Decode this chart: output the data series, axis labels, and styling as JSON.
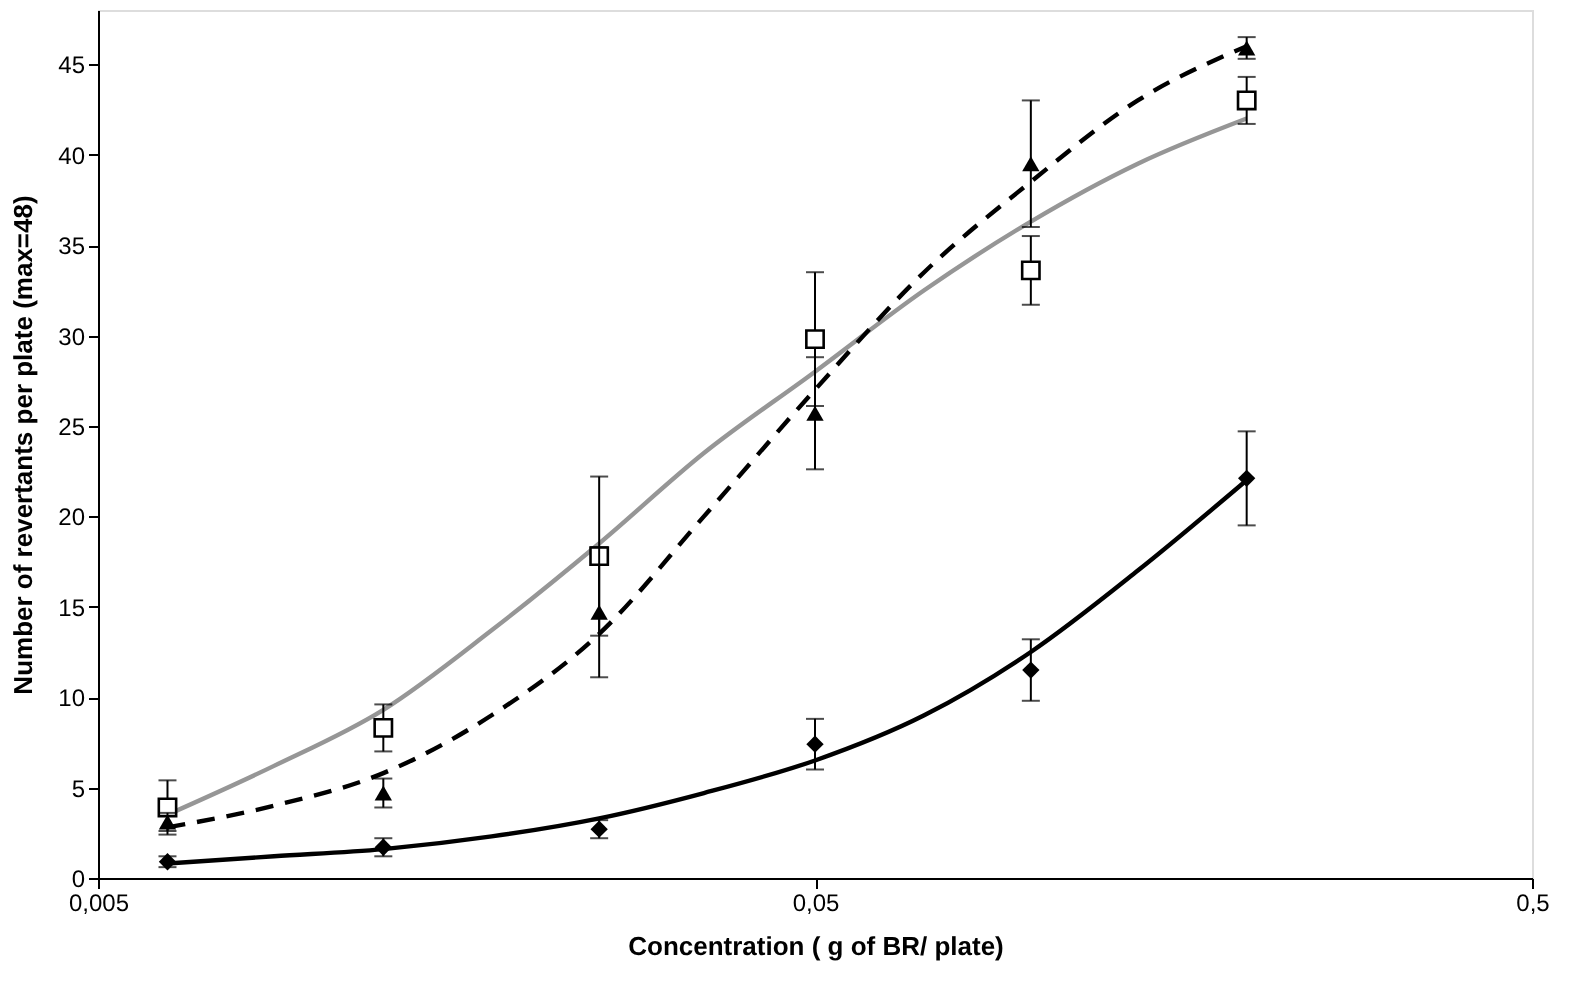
{
  "chart_data": {
    "type": "scatter",
    "xlabel": "Concentration ( g of BR/ plate)",
    "ylabel": "Number of revertants per plate (max=48)",
    "log": "x",
    "xlim": [
      0.005,
      0.5
    ],
    "xticks": [
      {
        "value": 0.005,
        "label": "0,005"
      },
      {
        "value": 0.05,
        "label": "0,05"
      },
      {
        "value": 0.5,
        "label": "0,5"
      }
    ],
    "ylim": [
      0,
      48
    ],
    "yticks": [
      0,
      5,
      10,
      15,
      20,
      25,
      30,
      35,
      40,
      45
    ],
    "grid": false,
    "x": [
      0.00625,
      0.0125,
      0.025,
      0.05,
      0.1,
      0.2
    ],
    "series": [
      {
        "marker": "square",
        "color": "#000000",
        "values": [
          3.9,
          8.3,
          17.8,
          29.8,
          33.6,
          43.0
        ],
        "errors": [
          1.5,
          1.3,
          4.4,
          3.7,
          1.9,
          1.3
        ]
      },
      {
        "marker": "triangle",
        "color": "#000000",
        "values": [
          3.1,
          4.7,
          14.7,
          25.7,
          39.5,
          45.9
        ],
        "errors": [
          0.5,
          0.8,
          3.6,
          3.1,
          3.5,
          0.6
        ]
      },
      {
        "marker": "diamond",
        "color": "#000000",
        "values": [
          0.9,
          1.7,
          2.7,
          7.4,
          11.5,
          22.1
        ],
        "errors": [
          0.3,
          0.5,
          0.5,
          1.4,
          1.7,
          2.6
        ]
      },
      {
        "type": "line",
        "marker": "none",
        "line_style": "solid",
        "color": "#969696",
        "x": [
          0.00625,
          0.0088,
          0.0125,
          0.0177,
          0.025,
          0.035,
          0.05,
          0.071,
          0.1,
          0.141,
          0.2
        ],
        "values": [
          3.5,
          6.2,
          9.3,
          13.7,
          18.5,
          23.5,
          28,
          32.5,
          36.3,
          39.5,
          42
        ]
      },
      {
        "type": "line",
        "marker": "none",
        "line_style": "dashed",
        "color": "#000000",
        "x": [
          0.00625,
          0.0088,
          0.0125,
          0.0177,
          0.025,
          0.035,
          0.05,
          0.071,
          0.1,
          0.141,
          0.2
        ],
        "values": [
          2.8,
          4.0,
          5.8,
          9.0,
          13.5,
          20,
          27,
          33.5,
          38.5,
          43,
          46
        ]
      },
      {
        "type": "line",
        "marker": "none",
        "line_style": "solid",
        "color": "#000000",
        "x": [
          0.00625,
          0.0088,
          0.0125,
          0.0177,
          0.025,
          0.035,
          0.05,
          0.071,
          0.1,
          0.141,
          0.2
        ],
        "values": [
          0.8,
          1.2,
          1.6,
          2.3,
          3.3,
          4.7,
          6.5,
          9.0,
          12.5,
          17,
          22
        ]
      }
    ]
  }
}
